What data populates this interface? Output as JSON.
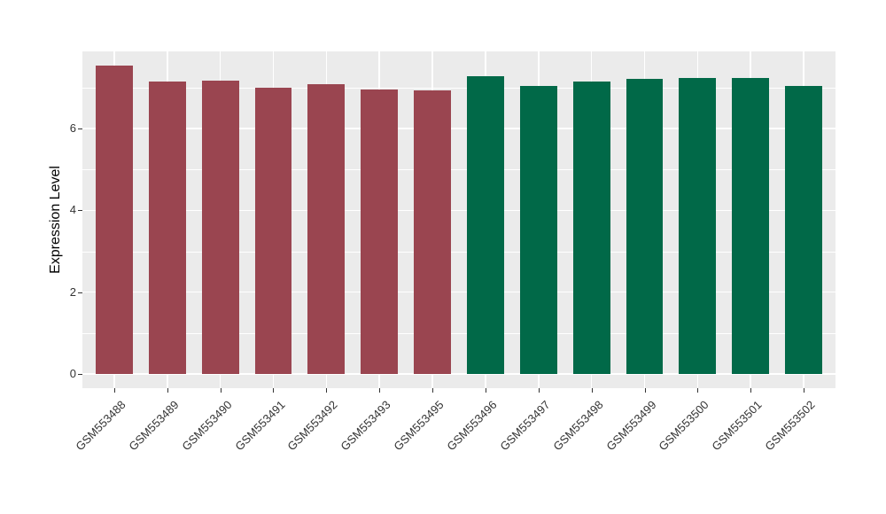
{
  "figure": {
    "background": "#FFFFFF",
    "panel_background": "#EBEBEB",
    "gridline_color": "#FFFFFF",
    "tick_color": "#333333",
    "tick_label_color": "#333333"
  },
  "chart_data": {
    "type": "bar",
    "title": "",
    "xlabel": "",
    "ylabel": "Expression Level",
    "categories": [
      "GSM553488",
      "GSM553489",
      "GSM553490",
      "GSM553491",
      "GSM553492",
      "GSM553493",
      "GSM553495",
      "GSM553496",
      "GSM553497",
      "GSM553498",
      "GSM553499",
      "GSM553500",
      "GSM553501",
      "GSM553502"
    ],
    "values": [
      7.55,
      7.16,
      7.18,
      7.0,
      7.09,
      6.96,
      6.94,
      7.29,
      7.05,
      7.16,
      7.22,
      7.24,
      7.24,
      7.05
    ],
    "bar_colors": [
      "#9A4550",
      "#9A4550",
      "#9A4550",
      "#9A4550",
      "#9A4550",
      "#9A4550",
      "#9A4550",
      "#016948",
      "#016948",
      "#016948",
      "#016948",
      "#016948",
      "#016948",
      "#016948"
    ],
    "group_colors": {
      "left_group": "#9A4550",
      "right_group": "#016948"
    },
    "yticks": [
      0,
      2,
      4,
      6
    ],
    "minor_gridlines": [
      1,
      3,
      5,
      7
    ],
    "ylim": [
      -0.35,
      7.89
    ],
    "grid": "on",
    "legend": "none",
    "x_label_rotation_deg": 45
  }
}
